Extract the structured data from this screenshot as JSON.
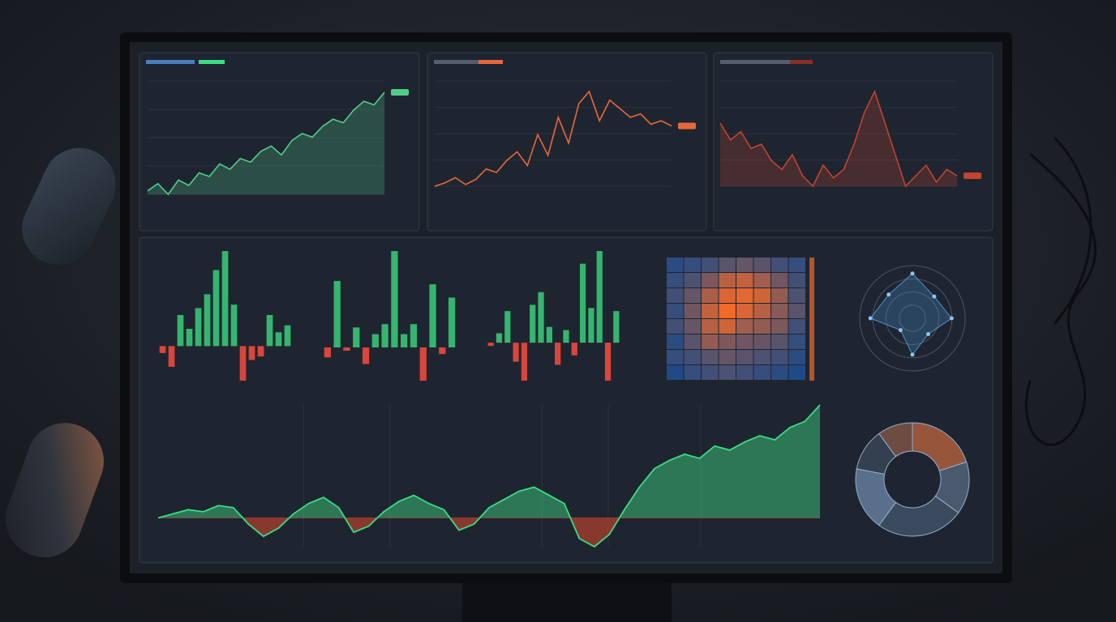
{
  "chart_data": [
    {
      "type": "area",
      "color": "#4fd08a",
      "values": [
        30,
        34,
        28,
        36,
        33,
        40,
        38,
        45,
        42,
        48,
        46,
        52,
        55,
        50,
        58,
        62,
        60,
        66,
        70,
        68,
        75,
        80,
        78,
        85
      ]
    },
    {
      "type": "line",
      "color": "#e8683a",
      "values": [
        30,
        32,
        35,
        31,
        34,
        40,
        38,
        45,
        50,
        42,
        60,
        48,
        70,
        55,
        78,
        85,
        68,
        80,
        75,
        70,
        72,
        66,
        68,
        65
      ]
    },
    {
      "type": "area",
      "color": "#c0442f",
      "values": [
        70,
        62,
        66,
        58,
        60,
        52,
        48,
        55,
        45,
        40,
        50,
        44,
        48,
        60,
        75,
        85,
        70,
        55,
        40,
        45,
        50,
        42,
        48,
        45
      ]
    },
    {
      "type": "bar",
      "color": "#35b56f",
      "negative_color": "#d9463b",
      "values": [
        -4,
        -12,
        18,
        10,
        22,
        30,
        44,
        55,
        24,
        -20,
        -8,
        -6,
        18,
        8,
        12
      ]
    },
    {
      "type": "bar",
      "color": "#35b56f",
      "negative_color": "#d9463b",
      "values": [
        -6,
        40,
        -2,
        12,
        -10,
        8,
        14,
        58,
        8,
        14,
        -20,
        38,
        -4,
        30
      ]
    },
    {
      "type": "bar",
      "color": "#35b56f",
      "negative_color": "#d9463b",
      "values": [
        -2,
        6,
        20,
        -12,
        -24,
        24,
        32,
        10,
        -14,
        8,
        -8,
        50,
        22,
        58,
        -24,
        20
      ]
    },
    {
      "type": "heatmap",
      "color": "#1f4a86",
      "high_color": "#f06a2a",
      "values": [
        [
          10,
          15,
          20,
          30,
          35,
          30,
          20,
          15
        ],
        [
          15,
          25,
          45,
          70,
          75,
          60,
          40,
          20
        ],
        [
          20,
          35,
          65,
          85,
          90,
          80,
          55,
          25
        ],
        [
          15,
          40,
          75,
          95,
          85,
          70,
          50,
          30
        ],
        [
          20,
          35,
          70,
          80,
          60,
          55,
          45,
          20
        ],
        [
          10,
          30,
          55,
          45,
          40,
          35,
          30,
          15
        ],
        [
          15,
          20,
          30,
          35,
          30,
          25,
          20,
          10
        ],
        [
          5,
          15,
          20,
          25,
          20,
          15,
          10,
          5
        ]
      ]
    },
    {
      "type": "radar",
      "color": "#4a90c8",
      "values": [
        80,
        55,
        70,
        40,
        65,
        30,
        75,
        60
      ]
    },
    {
      "type": "area",
      "color": "#3ddc84",
      "negative_color": "#e0482e",
      "values": [
        0,
        4,
        8,
        6,
        12,
        10,
        -6,
        -18,
        -10,
        4,
        14,
        20,
        10,
        -14,
        -8,
        6,
        16,
        22,
        14,
        8,
        -12,
        -6,
        10,
        18,
        26,
        30,
        22,
        14,
        -20,
        -28,
        -16,
        8,
        30,
        48,
        56,
        62,
        58,
        70,
        66,
        74,
        80,
        76,
        88,
        94,
        110
      ]
    },
    {
      "type": "pie",
      "color": "#c0653f",
      "values": [
        20,
        15,
        25,
        18,
        12,
        10
      ]
    }
  ]
}
